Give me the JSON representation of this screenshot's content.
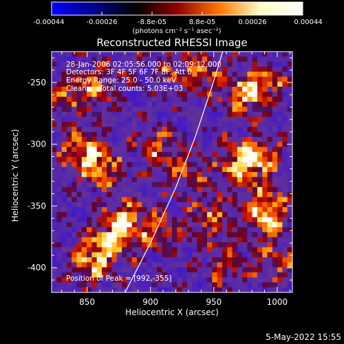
{
  "chart_data": {
    "type": "heatmap",
    "title": "Reconstructed RHESSI Image",
    "xlabel": "Heliocentric X (arcsec)",
    "ylabel": "Heliocentric Y (arcsec)",
    "xlim": [
      822,
      1012
    ],
    "ylim": [
      -420,
      -225
    ],
    "x_ticks": [
      850,
      900,
      950,
      1000
    ],
    "y_ticks": [
      -250,
      -300,
      -350,
      -400
    ],
    "colorbar": {
      "ticks": [
        "-0.00044",
        "-0.00026",
        "-8.8e-05",
        "8.8e-05",
        "0.00026",
        "0.00044"
      ],
      "range": [
        -0.00044,
        0.00044
      ],
      "unit_label": "(photons cm⁻² s⁻¹ asec⁻²)",
      "colormap": [
        "#0000ff",
        "#00008c",
        "#000000",
        "#8c0000",
        "#ff7800",
        "#ffffc8",
        "#ffffff"
      ]
    },
    "annotations": {
      "time_range": "28-Jan-2006 02:05:56.000 to 02:09:12.000",
      "detectors": "Detectors: 3F 4F 5F 6F 7F 8F, Att 0",
      "energy": "Energy Range: 25.0 - 50.0 keV",
      "method": "Clean",
      "counts": "Total counts: 5.03E+03",
      "peak": "Position of Peak = [992,-355]"
    },
    "limb_curve": [
      [
        880,
        -420
      ],
      [
        900,
        -380
      ],
      [
        920,
        -335
      ],
      [
        935,
        -295
      ],
      [
        948,
        -255
      ],
      [
        957,
        -225
      ]
    ],
    "peak_position": [
      992,
      -355
    ],
    "bright_sources": [
      {
        "x": 992,
        "y": -355,
        "intensity": 1.0
      },
      {
        "x": 855,
        "y": -395,
        "intensity": 0.8
      },
      {
        "x": 872,
        "y": -375,
        "intensity": 0.7
      },
      {
        "x": 845,
        "y": -305,
        "intensity": 0.75
      },
      {
        "x": 862,
        "y": -322,
        "intensity": 0.65
      },
      {
        "x": 985,
        "y": -310,
        "intensity": 0.7
      },
      {
        "x": 970,
        "y": -318,
        "intensity": 0.75
      },
      {
        "x": 905,
        "y": -303,
        "intensity": 0.55
      },
      {
        "x": 838,
        "y": -262,
        "intensity": 0.55
      },
      {
        "x": 975,
        "y": -262,
        "intensity": 0.65
      },
      {
        "x": 990,
        "y": -250,
        "intensity": 0.6
      },
      {
        "x": 920,
        "y": -240,
        "intensity": 0.5
      },
      {
        "x": 945,
        "y": -245,
        "intensity": 0.5
      },
      {
        "x": 880,
        "y": -360,
        "intensity": 0.6
      },
      {
        "x": 948,
        "y": -360,
        "intensity": 0.55
      },
      {
        "x": 1000,
        "y": -395,
        "intensity": 0.55
      },
      {
        "x": 960,
        "y": -398,
        "intensity": 0.5
      },
      {
        "x": 908,
        "y": -370,
        "intensity": 0.55
      },
      {
        "x": 930,
        "y": -322,
        "intensity": 0.45
      },
      {
        "x": 860,
        "y": -250,
        "intensity": 0.5
      }
    ]
  },
  "footer": {
    "date": "5-May-2022 15:55"
  }
}
